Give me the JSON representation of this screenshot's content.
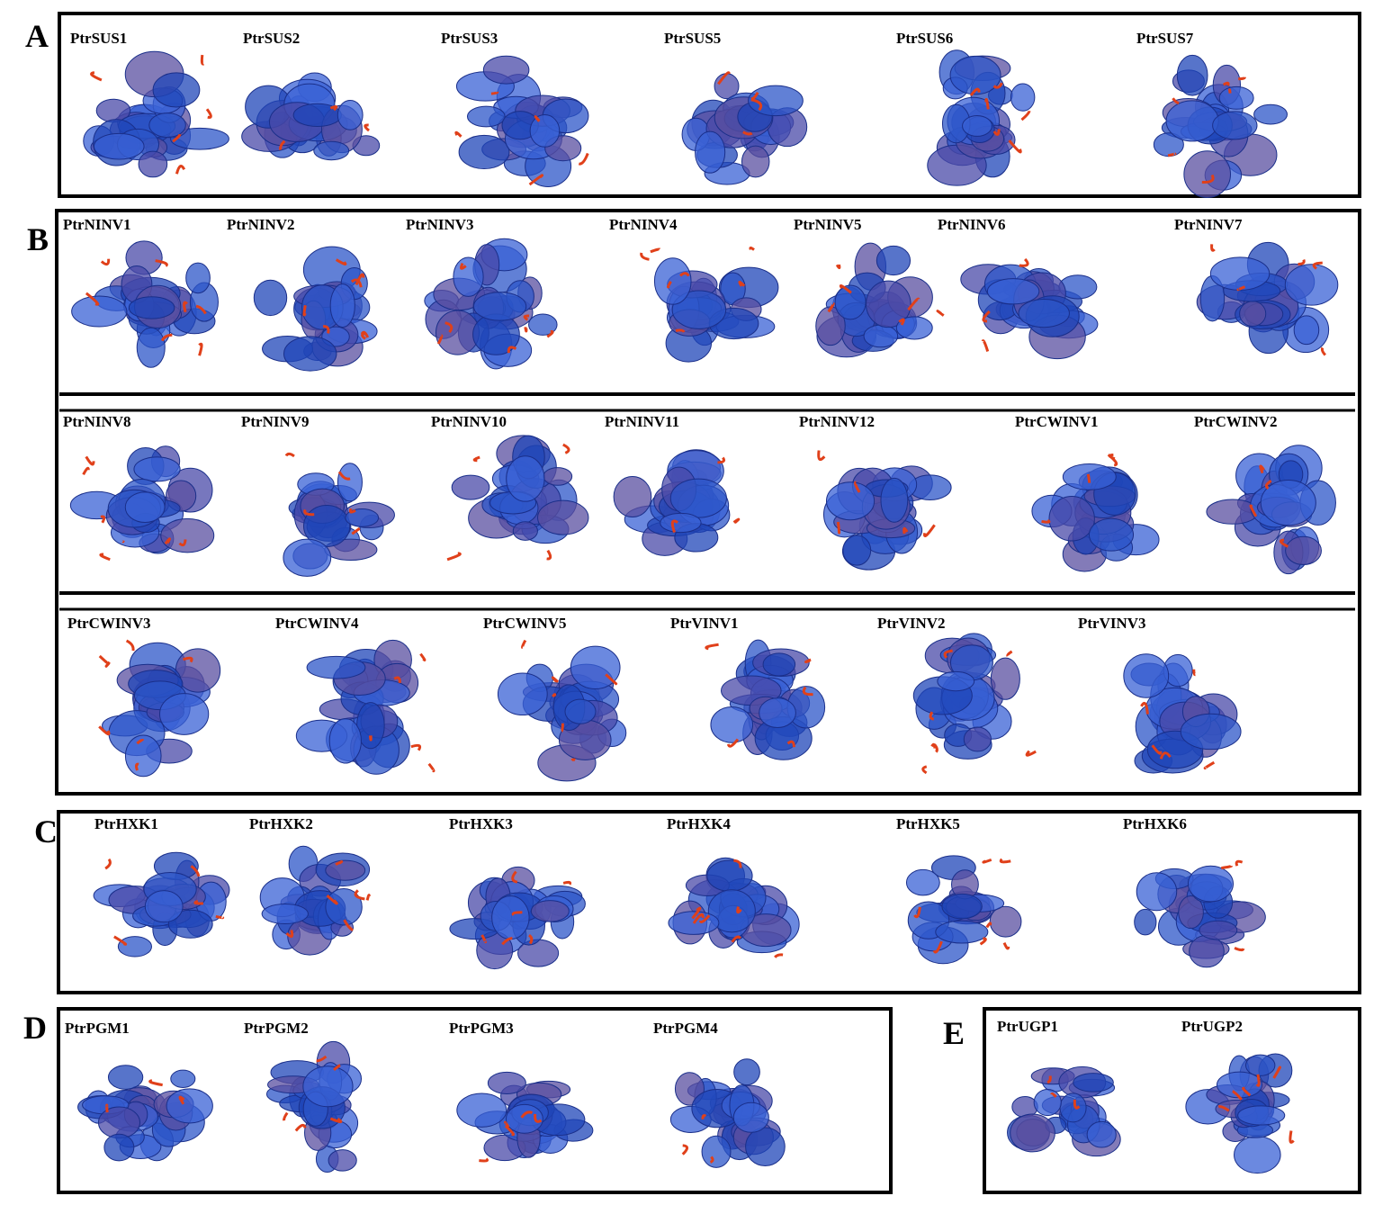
{
  "panels": [
    {
      "letter": "A",
      "labels": [
        "PtrSUS1",
        "PtrSUS2",
        "PtrSUS3",
        "PtrSUS5",
        "PtrSUS6",
        "PtrSUS7"
      ]
    },
    {
      "letter": "B",
      "rows": [
        [
          "PtrNINV1",
          "PtrNINV2",
          "PtrNINV3",
          "PtrNINV4",
          "PtrNINV5",
          "PtrNINV6",
          "PtrNINV7"
        ],
        [
          "PtrNINV8",
          "PtrNINV9",
          "PtrNINV10",
          "PtrNINV11",
          "PtrNINV12",
          "PtrCWINV1",
          "PtrCWINV2"
        ],
        [
          "PtrCWINV3",
          "PtrCWINV4",
          "PtrCWINV5",
          "PtrVINV1",
          "PtrVINV2",
          "PtrVINV3"
        ]
      ]
    },
    {
      "letter": "C",
      "labels": [
        "PtrHXK1",
        "PtrHXK2",
        "PtrHXK3",
        "PtrHXK4",
        "PtrHXK5",
        "PtrHXK6"
      ]
    },
    {
      "letter": "D",
      "labels": [
        "PtrPGM1",
        "PtrPGM2",
        "PtrPGM3",
        "PtrPGM4"
      ]
    },
    {
      "letter": "E",
      "labels": [
        "PtrUGP1",
        "PtrUGP2"
      ]
    }
  ]
}
